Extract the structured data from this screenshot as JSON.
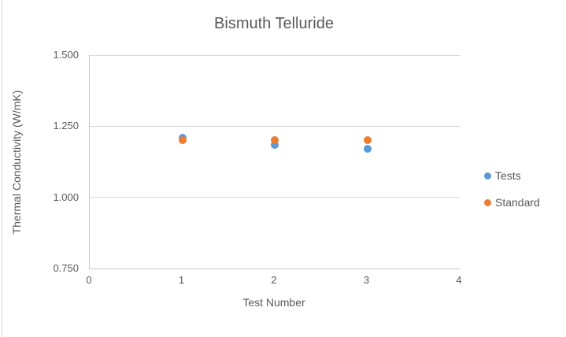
{
  "chart_data": {
    "type": "scatter",
    "title": "Bismuth Telluride",
    "xlabel": "Test Number",
    "ylabel": "Thermal Conductivity (W/mK)",
    "xlim": [
      0,
      4
    ],
    "ylim": [
      0.75,
      1.5
    ],
    "x_ticks": [
      "0",
      "1",
      "2",
      "3",
      "4"
    ],
    "y_ticks": [
      "1.500",
      "1.250",
      "1.000",
      "0.750"
    ],
    "grid": true,
    "legend_position": "right",
    "series": [
      {
        "name": "Tests",
        "color": "#5B9BD5",
        "x": [
          1,
          2,
          3
        ],
        "y": [
          1.21,
          1.185,
          1.17
        ]
      },
      {
        "name": "Standard",
        "color": "#ED7D31",
        "x": [
          1,
          2,
          3
        ],
        "y": [
          1.2,
          1.2,
          1.2
        ]
      }
    ],
    "colors": {
      "text": "#595959",
      "gridline": "#D9D9D9",
      "axis_line": "#C9C9C9",
      "background": "#FFFFFF"
    }
  }
}
